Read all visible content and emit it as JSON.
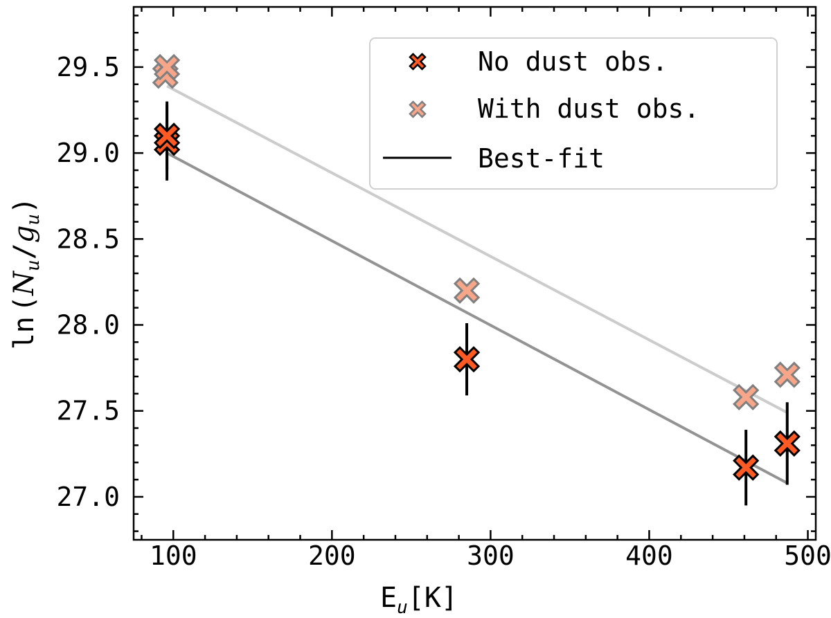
{
  "chart_data": {
    "type": "scatter",
    "xlabel": {
      "main": "E",
      "sub": "u",
      "unit": "[K]"
    },
    "ylabel": {
      "prefix": "ln",
      "num": "N",
      "num_sub": "u",
      "den": "g",
      "den_sub": "u"
    },
    "xlim": [
      75,
      505
    ],
    "ylim": [
      26.75,
      29.85
    ],
    "xticks": [
      100,
      200,
      300,
      400,
      500
    ],
    "yticks": [
      27.0,
      27.5,
      28.0,
      28.5,
      29.0,
      29.5
    ],
    "xticks_minor": [
      80,
      120,
      140,
      160,
      180,
      220,
      240,
      260,
      280,
      320,
      340,
      360,
      380,
      420,
      440,
      460,
      480
    ],
    "yticks_minor": [
      26.8,
      26.9,
      27.1,
      27.2,
      27.3,
      27.4,
      27.6,
      27.7,
      27.8,
      27.9,
      28.1,
      28.2,
      28.3,
      28.4,
      28.6,
      28.7,
      28.8,
      28.9,
      29.1,
      29.2,
      29.3,
      29.4,
      29.6,
      29.7,
      29.8
    ],
    "xtick_labels": [
      "100",
      "200",
      "300",
      "400",
      "500"
    ],
    "ytick_labels": [
      "27.0",
      "27.5",
      "28.0",
      "28.5",
      "29.0",
      "29.5"
    ],
    "grid": false,
    "legend_position": "top-right",
    "series": [
      {
        "name": "No dust obs.",
        "kind": "scatter",
        "marker": "X",
        "color": "#ff5a24",
        "edge_color": "#000000",
        "x": [
          96,
          96,
          285,
          461,
          487
        ],
        "y": [
          29.06,
          29.1,
          27.8,
          27.17,
          27.31
        ],
        "yerr": [
          0.22,
          0.2,
          0.21,
          0.22,
          0.24
        ]
      },
      {
        "name": "With dust obs.",
        "kind": "scatter",
        "marker": "X",
        "color": "#f7a68a",
        "edge_color": "#7f7f7f",
        "x": [
          95,
          96,
          285,
          461,
          487
        ],
        "y": [
          29.45,
          29.5,
          28.2,
          27.58,
          27.71
        ]
      },
      {
        "name": "Best-fit",
        "kind": "line",
        "color": "#000000",
        "x": [
          96,
          487
        ],
        "y": [
          29.0,
          27.08
        ]
      },
      {
        "name": "",
        "kind": "line",
        "color": "#cccccc",
        "x": [
          96,
          487
        ],
        "y": [
          29.39,
          27.49
        ]
      }
    ],
    "fit_line_colors": [
      "#939393",
      "#cccccc"
    ]
  }
}
